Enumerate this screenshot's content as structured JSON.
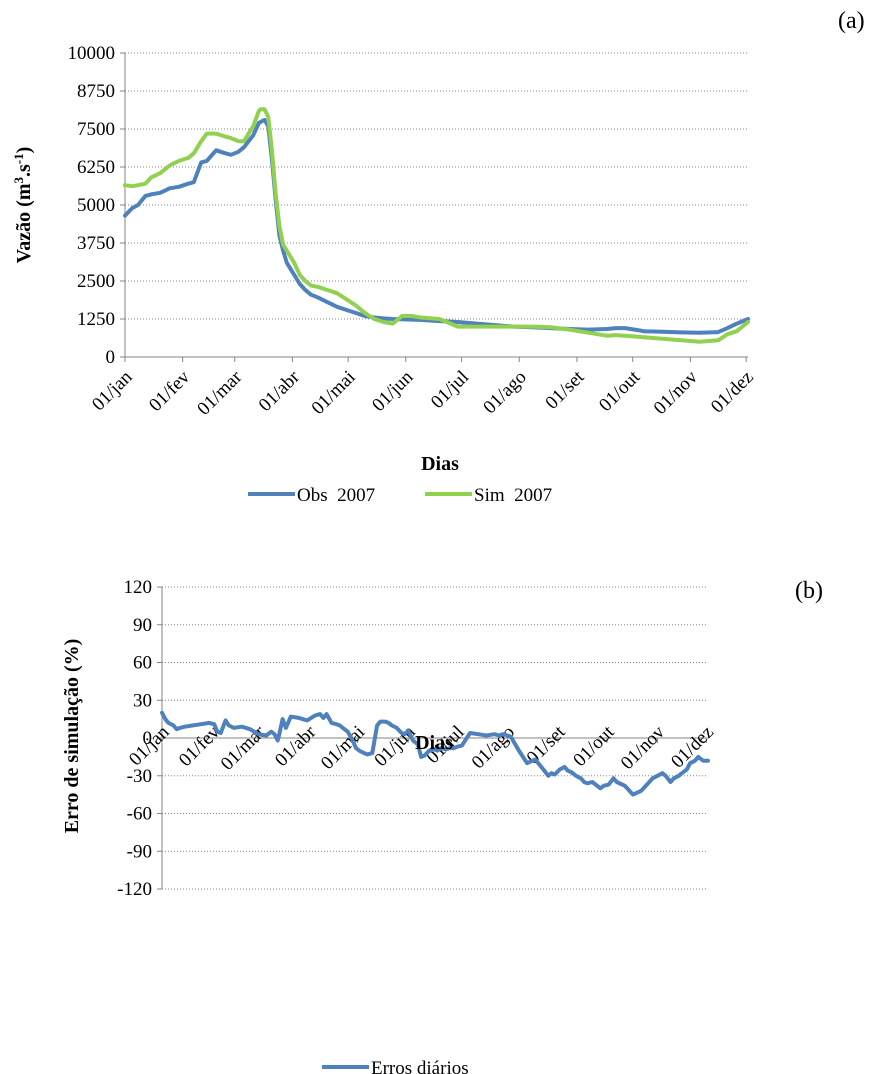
{
  "panels": {
    "a_label": "(a)",
    "b_label": "(b)"
  },
  "colors": {
    "obs": "#4F81BD",
    "sim": "#92D050",
    "erro": "#4F81BD"
  },
  "chart_data": [
    {
      "type": "line",
      "panel": "(a)",
      "title": "",
      "xlabel": "Dias",
      "ylabel_main": "Vazão (m",
      "ylabel_sup1": "3",
      "ylabel_mid": ".s",
      "ylabel_sup2": "-1",
      "ylabel_end": ")",
      "ylim": [
        0,
        10000
      ],
      "yticks": [
        "0",
        "1250",
        "2500",
        "3750",
        "5000",
        "6250",
        "7500",
        "8750",
        "10000"
      ],
      "ytick_values": [
        0,
        1250,
        2500,
        3750,
        5000,
        6250,
        7500,
        8750,
        10000
      ],
      "xlim": [
        1,
        336
      ],
      "xticks": [
        "01/jan",
        "01/fev",
        "01/mar",
        "01/abr",
        "01/mai",
        "01/jun",
        "01/jul",
        "01/ago",
        "01/set",
        "01/out",
        "01/nov",
        "01/dez"
      ],
      "xtick_days": [
        1,
        32,
        60,
        91,
        121,
        152,
        182,
        213,
        244,
        274,
        305,
        335
      ],
      "legend_position": "bottom",
      "series": [
        {
          "name": "Obs  2007",
          "x": [
            1,
            5,
            8,
            12,
            15,
            20,
            25,
            30,
            35,
            38,
            42,
            45,
            50,
            55,
            58,
            60,
            62,
            65,
            70,
            73,
            76,
            78,
            80,
            82,
            84,
            86,
            88,
            90,
            92,
            95,
            98,
            101,
            105,
            110,
            115,
            120,
            125,
            130,
            135,
            140,
            145,
            150,
            155,
            160,
            170,
            180,
            190,
            200,
            210,
            220,
            230,
            240,
            250,
            260,
            265,
            270,
            275,
            280,
            290,
            300,
            310,
            320,
            325,
            330,
            336
          ],
          "values": [
            4650,
            4900,
            5000,
            5300,
            5350,
            5400,
            5550,
            5600,
            5700,
            5750,
            6400,
            6450,
            6800,
            6700,
            6650,
            6700,
            6750,
            6900,
            7300,
            7700,
            7800,
            7600,
            6500,
            5200,
            4000,
            3500,
            3100,
            2900,
            2700,
            2400,
            2200,
            2050,
            1950,
            1800,
            1650,
            1550,
            1450,
            1350,
            1300,
            1270,
            1250,
            1240,
            1230,
            1220,
            1180,
            1150,
            1100,
            1050,
            1000,
            980,
            950,
            920,
            900,
            920,
            950,
            950,
            900,
            850,
            830,
            810,
            800,
            820,
            950,
            1100,
            1250
          ],
          "extra_x": [],
          "extra_values": []
        },
        {
          "name": "Sim  2007",
          "x": [
            1,
            5,
            8,
            12,
            15,
            20,
            25,
            30,
            35,
            38,
            42,
            45,
            50,
            55,
            58,
            60,
            62,
            65,
            70,
            73,
            74,
            76,
            78,
            80,
            82,
            84,
            86,
            88,
            90,
            92,
            95,
            98,
            101,
            105,
            110,
            115,
            120,
            125,
            130,
            135,
            140,
            145,
            150,
            155,
            160,
            170,
            180,
            190,
            200,
            210,
            220,
            230,
            240,
            245,
            250,
            255,
            260,
            265,
            270,
            280,
            290,
            300,
            310,
            320,
            325,
            330,
            336
          ],
          "values": [
            5650,
            5620,
            5650,
            5700,
            5900,
            6050,
            6300,
            6450,
            6550,
            6700,
            7100,
            7350,
            7350,
            7250,
            7200,
            7150,
            7100,
            7100,
            7600,
            8100,
            8150,
            8150,
            7900,
            6800,
            5400,
            4300,
            3700,
            3500,
            3300,
            3100,
            2700,
            2500,
            2350,
            2300,
            2200,
            2100,
            1900,
            1700,
            1450,
            1250,
            1150,
            1100,
            1350,
            1350,
            1300,
            1250,
            1000,
            1000,
            1000,
            1000,
            1000,
            980,
            900,
            850,
            800,
            750,
            700,
            720,
            700,
            650,
            600,
            550,
            500,
            550,
            750,
            850,
            1150
          ],
          "extra_x": [],
          "extra_values": []
        }
      ]
    },
    {
      "type": "line",
      "panel": "(b)",
      "title": "",
      "xlabel": "Dias",
      "ylabel": "Erro de simulação (%)",
      "ylim": [
        -120,
        120
      ],
      "yticks": [
        "-120",
        "-90",
        "-60",
        "-30",
        "0",
        "30",
        "60",
        "90",
        "120"
      ],
      "ytick_values": [
        -120,
        -90,
        -60,
        -30,
        0,
        30,
        60,
        90,
        120
      ],
      "xlim": [
        1,
        336
      ],
      "xticks": [
        "01/jan",
        "01/fev",
        "01/mar",
        "01/abr",
        "01/mai",
        "01/jun",
        "01/jul",
        "01/ago",
        "01/set",
        "01/out",
        "01/nov",
        "01/dez"
      ],
      "xtick_days": [
        1,
        32,
        60,
        91,
        121,
        152,
        182,
        213,
        244,
        274,
        305,
        335
      ],
      "legend_position": "bottom",
      "series": [
        {
          "name": "Erros diários",
          "x": [
            1,
            3,
            5,
            8,
            10,
            12,
            15,
            20,
            25,
            30,
            33,
            35,
            37,
            40,
            42,
            45,
            50,
            55,
            60,
            65,
            68,
            70,
            72,
            73,
            75,
            77,
            80,
            85,
            90,
            95,
            98,
            100,
            102,
            105,
            108,
            110,
            112,
            115,
            118,
            120,
            122,
            125,
            127,
            130,
            133,
            135,
            138,
            140,
            142,
            145,
            148,
            150,
            152,
            155,
            158,
            160,
            162,
            165,
            168,
            170,
            172,
            175,
            178,
            180,
            182,
            185,
            190,
            195,
            200,
            205,
            208,
            210,
            213,
            215,
            220,
            225,
            230,
            235,
            238,
            240,
            242,
            245,
            248,
            250,
            252,
            255,
            258,
            260,
            262,
            265,
            268,
            270,
            272,
            275,
            278,
            280,
            285,
            290,
            295,
            300,
            302,
            305,
            308,
            310,
            313,
            315,
            318,
            320,
            323,
            325,
            328,
            330,
            333,
            336
          ],
          "values": [
            20,
            15,
            12,
            10,
            7,
            8,
            9,
            10,
            11,
            12,
            11,
            5,
            4,
            14,
            10,
            8,
            9,
            7,
            3,
            2,
            5,
            3,
            -2,
            3,
            15,
            8,
            17,
            16,
            14,
            18,
            19,
            16,
            19,
            12,
            11,
            10,
            8,
            5,
            -2,
            -8,
            -10,
            -12,
            -13,
            -12,
            10,
            13,
            13,
            12,
            10,
            8,
            4,
            3,
            6,
            -2,
            -5,
            -15,
            -14,
            -10,
            -9,
            -10,
            -8,
            -9,
            -8,
            -8,
            -7,
            -6,
            4,
            3,
            2,
            3,
            2,
            3,
            2,
            1,
            -10,
            -20,
            -17,
            -25,
            -30,
            -28,
            -29,
            -25,
            -23,
            -26,
            -27,
            -30,
            -32,
            -35,
            -36,
            -35,
            -38,
            -40,
            -38,
            -37,
            -32,
            -35,
            -38,
            -45,
            -42,
            -35,
            -32,
            -30,
            -28,
            -30,
            -35,
            -32,
            -30,
            -28,
            -25,
            -20,
            -18,
            -15,
            -18,
            -18
          ],
          "extra_x": [],
          "extra_values": []
        }
      ]
    }
  ]
}
